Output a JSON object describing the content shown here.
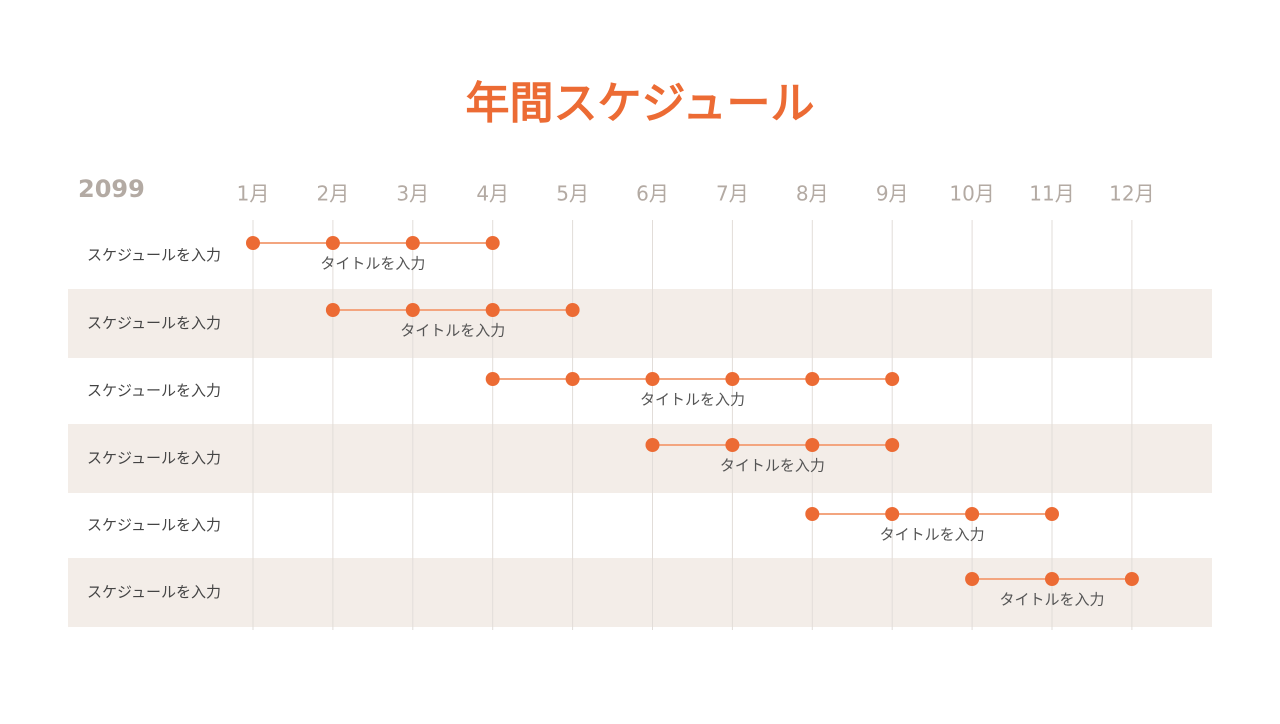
{
  "title": "年間スケジュール",
  "year": "2099",
  "months": [
    "1月",
    "2月",
    "3月",
    "4月",
    "5月",
    "6月",
    "7月",
    "8月",
    "9月",
    "10月",
    "11月",
    "12月"
  ],
  "rows": [
    {
      "label": "スケジュールを入力",
      "title": "タイトルを入力",
      "start": 1,
      "end": 4
    },
    {
      "label": "スケジュールを入力",
      "title": "タイトルを入力",
      "start": 2,
      "end": 5
    },
    {
      "label": "スケジュールを入力",
      "title": "タイトルを入力",
      "start": 4,
      "end": 9
    },
    {
      "label": "スケジュールを入力",
      "title": "タイトルを入力",
      "start": 6,
      "end": 9
    },
    {
      "label": "スケジュールを入力",
      "title": "タイトルを入力",
      "start": 8,
      "end": 11
    },
    {
      "label": "スケジュールを入力",
      "title": "タイトルを入力",
      "start": 10,
      "end": 12
    }
  ]
}
